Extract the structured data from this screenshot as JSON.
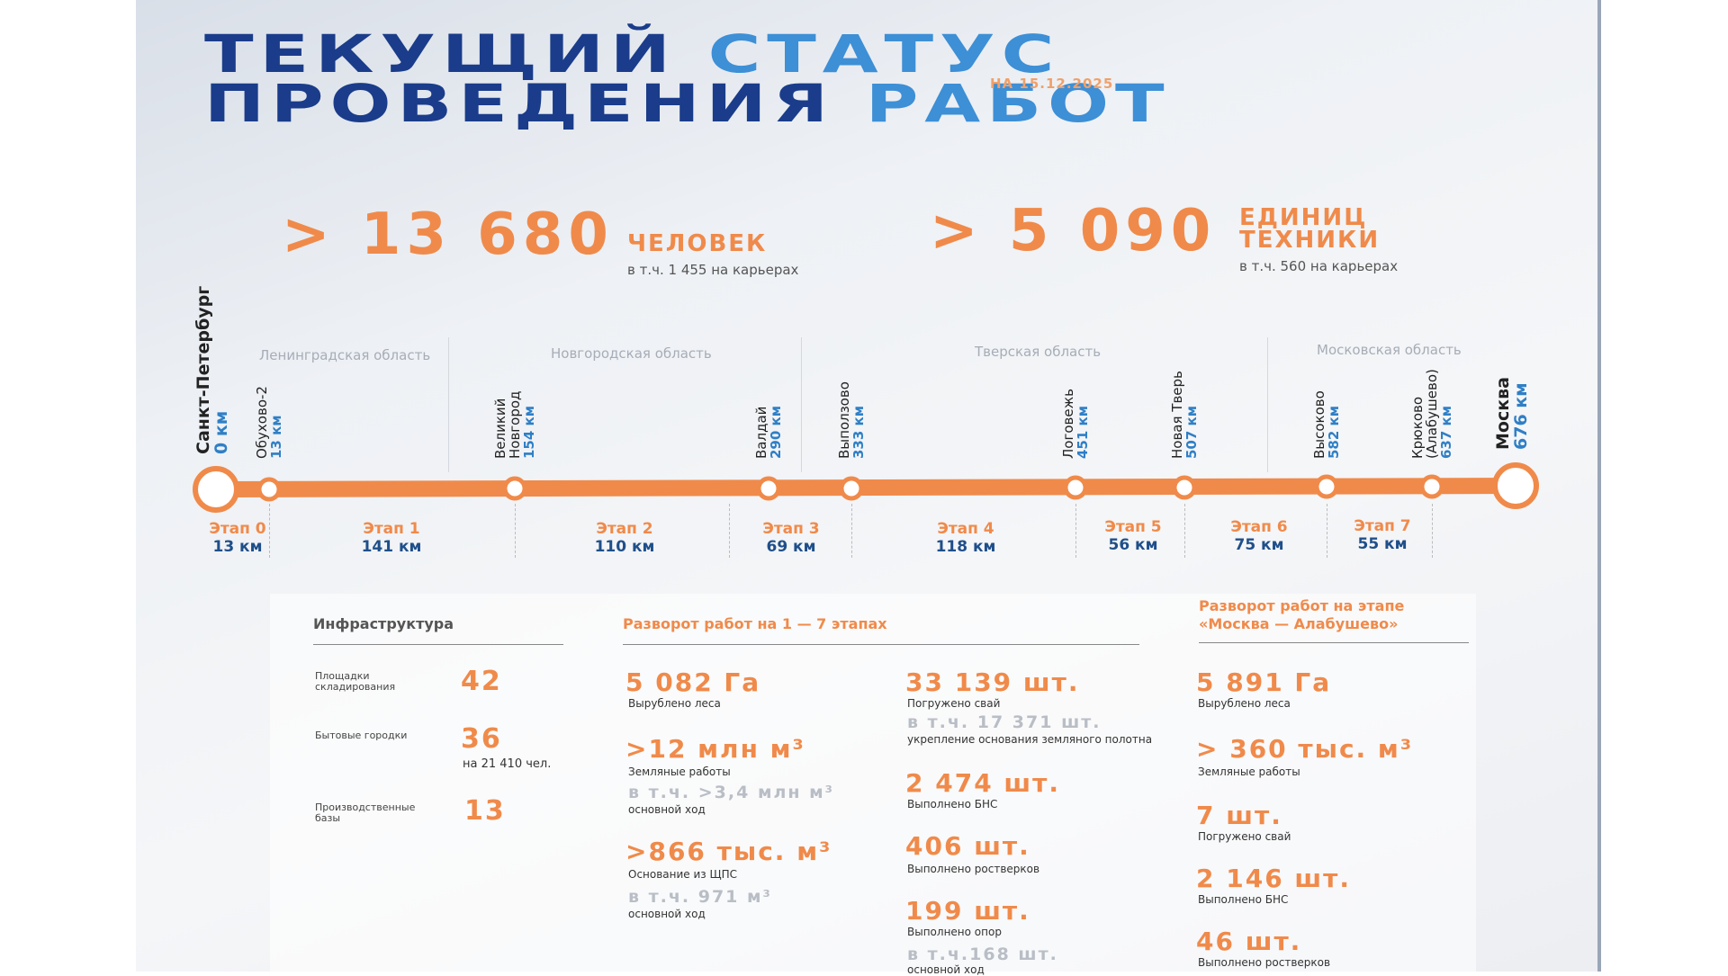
{
  "title": {
    "line1_dark": "ТЕКУЩИЙ",
    "line1_light": "СТАТУС",
    "line2_dark": "ПРОВЕДЕНИЯ",
    "line2_light": "РАБОТ",
    "date": "НА 15.12.2025"
  },
  "headline": {
    "people_value": "> 13 680",
    "people_unit": "ЧЕЛОВЕК",
    "people_note": "в т.ч. 1 455 на карьерах",
    "equipment_value": "> 5 090",
    "equipment_unit_1": "ЕДИНИЦ",
    "equipment_unit_2": "ТЕХНИКИ",
    "equipment_note": "в т.ч. 560 на карьерах"
  },
  "regions": [
    "Ленинградская область",
    "Новгородская область",
    "Тверская область",
    "Московская область"
  ],
  "stations": [
    {
      "name": "Санкт-Петербург",
      "km": "0 км"
    },
    {
      "name": "Обухово-2",
      "km": "13 км"
    },
    {
      "name": "Великий Новгород",
      "km": "154 км"
    },
    {
      "name": "Валдай",
      "km": "290 км"
    },
    {
      "name": "Выползово",
      "km": "333 км"
    },
    {
      "name": "Логовежь",
      "km": "451 км"
    },
    {
      "name": "Новая Тверь",
      "km": "507 км"
    },
    {
      "name": "Высоково",
      "km": "582 км"
    },
    {
      "name": "Крюково (Алабушево)",
      "km": "637 км"
    },
    {
      "name": "Москва",
      "km": "676 км"
    }
  ],
  "stages": [
    {
      "label": "Этап 0",
      "length": "13 км"
    },
    {
      "label": "Этап 1",
      "length": "141 км"
    },
    {
      "label": "Этап 2",
      "length": "110 км"
    },
    {
      "label": "Этап 3",
      "length": "69 км"
    },
    {
      "label": "Этап 4",
      "length": "118 км"
    },
    {
      "label": "Этап 5",
      "length": "56 км"
    },
    {
      "label": "Этап 6",
      "length": "75 км"
    },
    {
      "label": "Этап 7",
      "length": "55 км"
    }
  ],
  "infra": {
    "title": "Инфраструктура",
    "items": [
      {
        "label": "Площадки складирования",
        "value": "42",
        "note": ""
      },
      {
        "label": "Бытовые городки",
        "value": "36",
        "note": "на 21 410 чел."
      },
      {
        "label": "Производственные базы",
        "value": "13",
        "note": ""
      }
    ]
  },
  "stages17": {
    "title": "Разворот работ на 1 — 7 этапах",
    "col1": [
      {
        "value": "5 082 Га",
        "label": "Вырублено леса",
        "sub": "",
        "sub_label": ""
      },
      {
        "value": ">12 млн м³",
        "label": "Земляные работы",
        "sub": "в т.ч. >3,4 млн м³",
        "sub_label": "основной ход"
      },
      {
        "value": ">866 тыс. м³",
        "label": "Основание из ЩПС",
        "sub": "в т.ч. 971 м³",
        "sub_label": "основной ход"
      }
    ],
    "col2": [
      {
        "value": "33 139 шт.",
        "label": "Погружено свай",
        "sub": "в т.ч. 17 371 шт.",
        "sub_label": "укрепление основания земляного полотна"
      },
      {
        "value": "2 474 шт.",
        "label": "Выполнено БНС",
        "sub": "",
        "sub_label": ""
      },
      {
        "value": "406 шт.",
        "label": "Выполнено ростверков",
        "sub": "",
        "sub_label": ""
      },
      {
        "value": "199 шт.",
        "label": "Выполнено опор",
        "sub": "в т.ч.168 шт.",
        "sub_label": "основной ход"
      }
    ]
  },
  "moscow": {
    "title_1": "Разворот работ на этапе",
    "title_2": "«Москва — Алабушево»",
    "items": [
      {
        "value": "5 891 Га",
        "label": "Вырублено леса"
      },
      {
        "value": "> 360 тыс. м³",
        "label": "Земляные работы"
      },
      {
        "value": "7 шт.",
        "label": "Погружено свай"
      },
      {
        "value": "2 146 шт.",
        "label": "Выполнено БНС"
      },
      {
        "value": "46 шт.",
        "label": "Выполнено ростверков"
      }
    ]
  },
  "colors": {
    "orange": "#f08a4a",
    "dark_blue": "#1a3c8a",
    "light_blue": "#3d8fd6"
  }
}
